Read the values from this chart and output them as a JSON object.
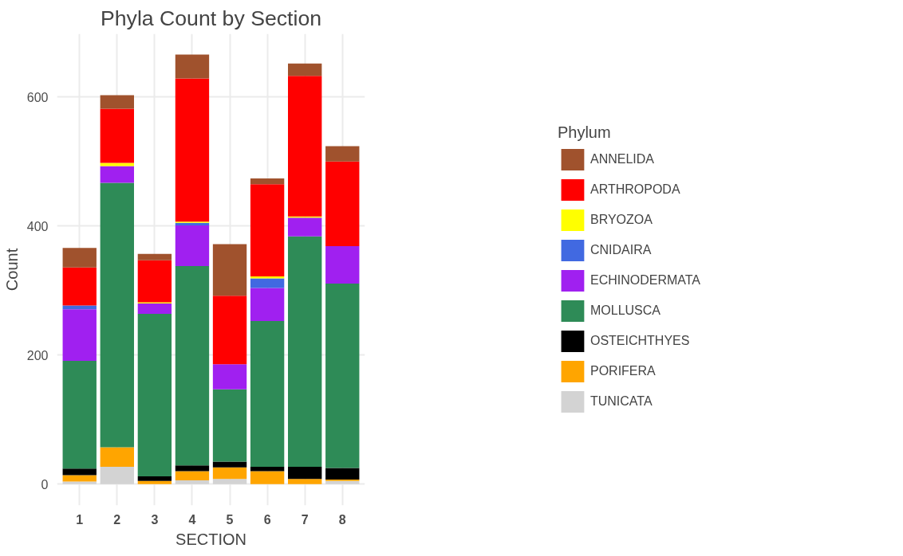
{
  "chart_data": {
    "type": "bar",
    "title": "Phyla Count by Section",
    "xlabel": "SECTION",
    "ylabel": "Count",
    "legend_title": "Phylum",
    "categories": [
      "1",
      "2",
      "3",
      "4",
      "5",
      "6",
      "7",
      "8"
    ],
    "stacked": true,
    "ylim": [
      -33,
      698
    ],
    "yticks": [
      0,
      200,
      400,
      600
    ],
    "grid": true,
    "legend": "right",
    "series": [
      {
        "name": "TUNICATA",
        "color": "#d3d3d3",
        "values": [
          4,
          27,
          null,
          6,
          8,
          null,
          0,
          5
        ]
      },
      {
        "name": "PORIFERA",
        "color": "#ffa500",
        "values": [
          10,
          30,
          5,
          14,
          18,
          20,
          8,
          2
        ]
      },
      {
        "name": "OSTEICHTHYES",
        "color": "#000000",
        "values": [
          10,
          0,
          7,
          9,
          9,
          7,
          19,
          18
        ]
      },
      {
        "name": "MOLLUSCA",
        "color": "#2e8b57",
        "values": [
          167,
          410,
          252,
          309,
          112,
          226,
          357,
          286
        ]
      },
      {
        "name": "ECHINODERMATA",
        "color": "#a020f0",
        "values": [
          80,
          26,
          16,
          63,
          39,
          51,
          29,
          58
        ]
      },
      {
        "name": "CNIDAIRA",
        "color": "#4169e1",
        "values": [
          6,
          0,
          null,
          4,
          0,
          15,
          0,
          0
        ]
      },
      {
        "name": "BRYOZOA",
        "color": "#ffff00",
        "values": [
          0,
          5,
          2,
          2,
          0,
          3,
          2,
          0
        ]
      },
      {
        "name": "ARTHROPODA",
        "color": "#ff0000",
        "values": [
          59,
          84,
          65,
          222,
          106,
          143,
          218,
          131
        ]
      },
      {
        "name": "ANNELIDA",
        "color": "#a0522d",
        "values": [
          30,
          21,
          10,
          37,
          80,
          9,
          19,
          24
        ]
      }
    ]
  }
}
